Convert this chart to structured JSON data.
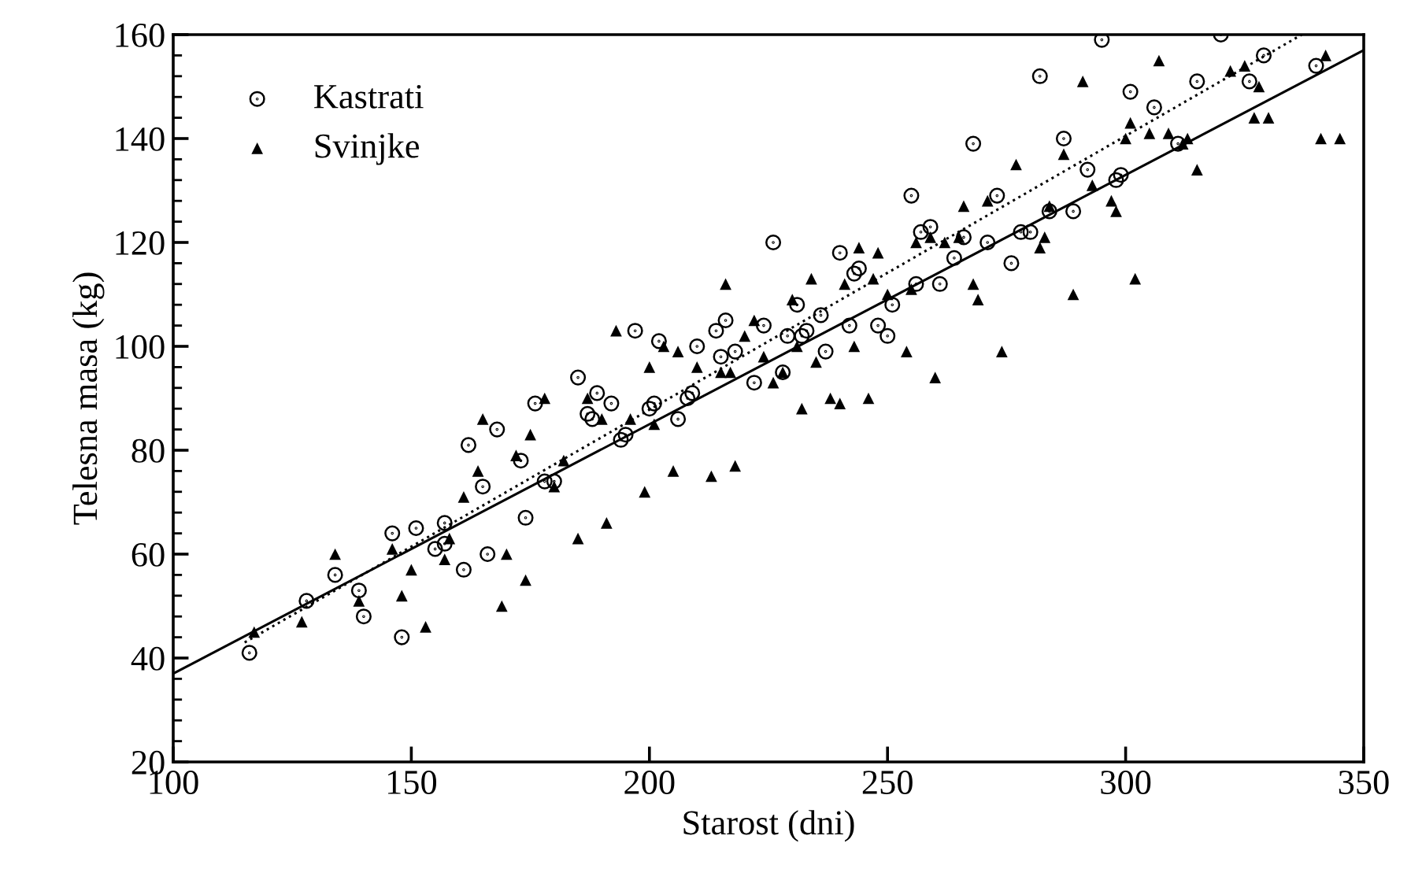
{
  "chart_data": {
    "type": "scatter",
    "xlabel": "Starost (dni)",
    "ylabel": "Telesna masa (kg)",
    "xlim": [
      100,
      350
    ],
    "ylim": [
      20,
      160
    ],
    "xticks": [
      100,
      150,
      200,
      250,
      300,
      350
    ],
    "yticks": [
      20,
      40,
      60,
      80,
      100,
      120,
      140,
      160
    ],
    "grid": false,
    "legend": "top left",
    "series": [
      {
        "name": "Kastrati",
        "color": "#000000",
        "marker": "circle",
        "x": [
          116,
          128,
          134,
          139,
          140,
          146,
          148,
          151,
          155,
          157,
          157,
          161,
          162,
          165,
          166,
          168,
          173,
          174,
          176,
          178,
          180,
          185,
          187,
          188,
          189,
          192,
          194,
          195,
          197,
          200,
          201,
          202,
          206,
          208,
          209,
          210,
          214,
          215,
          216,
          218,
          222,
          224,
          226,
          228,
          229,
          231,
          232,
          233,
          236,
          237,
          240,
          242,
          243,
          244,
          248,
          250,
          251,
          255,
          256,
          257,
          259,
          261,
          264,
          266,
          268,
          271,
          273,
          276,
          278,
          280,
          282,
          284,
          287,
          289,
          292,
          295,
          298,
          299,
          301,
          306,
          311,
          315,
          320,
          326,
          329,
          340
        ],
        "values": [
          41,
          51,
          56,
          53,
          48,
          64,
          44,
          65,
          61,
          66,
          62,
          57,
          81,
          73,
          60,
          84,
          78,
          67,
          89,
          74,
          74,
          94,
          87,
          86,
          91,
          89,
          82,
          83,
          103,
          88,
          89,
          101,
          86,
          90,
          91,
          100,
          103,
          98,
          105,
          99,
          93,
          104,
          120,
          95,
          102,
          108,
          102,
          103,
          106,
          99,
          118,
          104,
          114,
          115,
          104,
          102,
          108,
          129,
          112,
          122,
          123,
          112,
          117,
          121,
          139,
          120,
          129,
          116,
          122,
          122,
          152,
          126,
          140,
          126,
          134,
          159,
          132,
          133,
          149,
          146,
          139,
          151,
          160,
          151,
          156,
          154
        ]
      },
      {
        "name": "Svinjke",
        "color": "#000000",
        "marker": "triangle",
        "x": [
          117,
          127,
          134,
          139,
          146,
          148,
          150,
          153,
          157,
          158,
          161,
          164,
          165,
          169,
          170,
          172,
          174,
          175,
          178,
          180,
          182,
          185,
          187,
          190,
          191,
          193,
          196,
          199,
          200,
          201,
          203,
          205,
          206,
          210,
          213,
          215,
          216,
          217,
          218,
          220,
          222,
          224,
          226,
          228,
          230,
          231,
          232,
          234,
          235,
          238,
          240,
          241,
          243,
          244,
          246,
          247,
          248,
          250,
          254,
          255,
          256,
          259,
          260,
          262,
          265,
          266,
          268,
          269,
          271,
          274,
          277,
          282,
          283,
          284,
          287,
          289,
          291,
          293,
          297,
          298,
          300,
          301,
          302,
          305,
          307,
          309,
          312,
          313,
          315,
          322,
          325,
          327,
          328,
          330,
          341,
          342,
          345
        ],
        "values": [
          45,
          47,
          60,
          51,
          61,
          52,
          57,
          46,
          59,
          63,
          71,
          76,
          86,
          50,
          60,
          79,
          55,
          83,
          90,
          73,
          78,
          63,
          90,
          86,
          66,
          103,
          86,
          72,
          96,
          85,
          100,
          76,
          99,
          96,
          75,
          95,
          112,
          95,
          77,
          102,
          105,
          98,
          93,
          95,
          109,
          100,
          88,
          113,
          97,
          90,
          89,
          112,
          100,
          119,
          90,
          113,
          118,
          110,
          99,
          111,
          120,
          121,
          94,
          120,
          121,
          127,
          112,
          109,
          128,
          99,
          135,
          119,
          121,
          127,
          137,
          110,
          151,
          131,
          128,
          126,
          140,
          143,
          113,
          141,
          155,
          141,
          139,
          140,
          134,
          153,
          154,
          144,
          150,
          144,
          140,
          156,
          140
        ]
      },
      {
        "type": "line",
        "line_style": "solid",
        "color": "#000000",
        "x": [
          100,
          350
        ],
        "values": [
          37,
          157
        ]
      },
      {
        "type": "line",
        "line_style": "dotted",
        "color": "#000000",
        "x": [
          115,
          337
        ],
        "values": [
          43,
          160
        ]
      }
    ]
  }
}
